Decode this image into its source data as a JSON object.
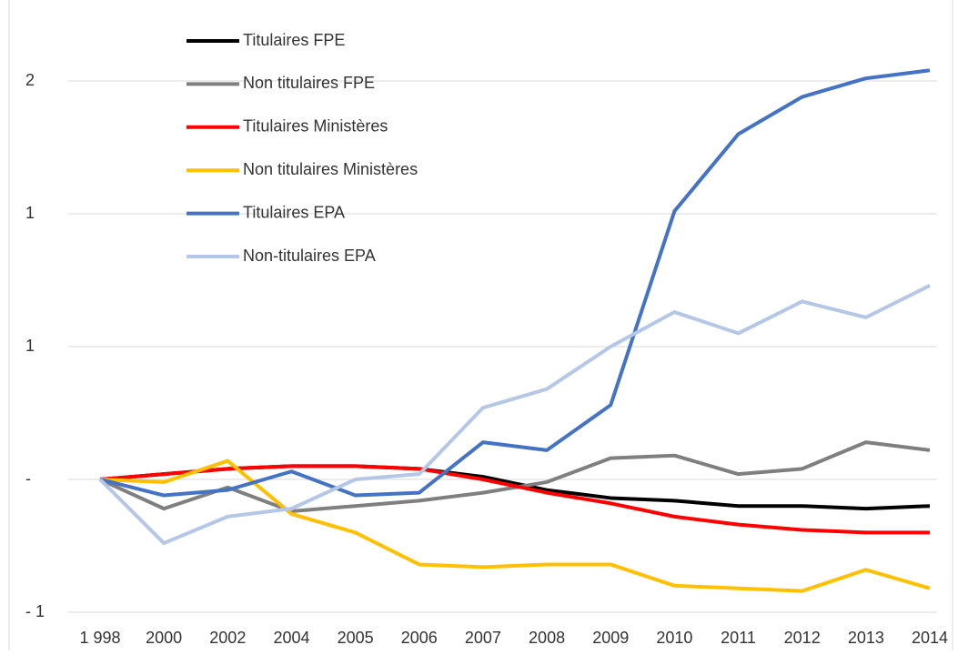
{
  "chart_data": {
    "type": "line",
    "categories": [
      "1 998",
      "2000",
      "2002",
      "2004",
      "2005",
      "2006",
      "2007",
      "2008",
      "2009",
      "2010",
      "2011",
      "2012",
      "2013",
      "2014"
    ],
    "series": [
      {
        "name": "Titulaires FPE",
        "color": "#000000",
        "values": [
          0,
          0.02,
          0.04,
          0.05,
          0.05,
          0.04,
          0.01,
          -0.04,
          -0.07,
          -0.08,
          -0.1,
          -0.1,
          -0.11,
          -0.1
        ]
      },
      {
        "name": "Non titulaires FPE",
        "color": "#7f7f7f",
        "values": [
          0,
          -0.11,
          -0.03,
          -0.12,
          -0.1,
          -0.08,
          -0.05,
          -0.01,
          0.08,
          0.09,
          0.02,
          0.04,
          0.14,
          0.11
        ]
      },
      {
        "name": "Titulaires Ministères",
        "color": "#ff0000",
        "values": [
          0,
          0.02,
          0.04,
          0.05,
          0.05,
          0.04,
          0,
          -0.05,
          -0.09,
          -0.14,
          -0.17,
          -0.19,
          -0.2,
          -0.2
        ]
      },
      {
        "name": "Non titulaires Ministères",
        "color": "#ffc000",
        "values": [
          0,
          -0.01,
          0.07,
          -0.13,
          -0.2,
          -0.32,
          -0.33,
          -0.32,
          -0.32,
          -0.4,
          -0.41,
          -0.42,
          -0.34,
          -0.41
        ]
      },
      {
        "name": "Titulaires EPA",
        "color": "#4472c4",
        "values": [
          0,
          -0.06,
          -0.04,
          0.03,
          -0.06,
          -0.05,
          0.14,
          0.11,
          0.28,
          1.01,
          1.3,
          1.44,
          1.51,
          1.54
        ]
      },
      {
        "name": "Non-titulaires EPA",
        "color": "#b4c7e7",
        "values": [
          0,
          -0.24,
          -0.14,
          -0.11,
          0,
          0.02,
          0.27,
          0.34,
          0.5,
          0.63,
          0.55,
          0.67,
          0.61,
          0.73
        ]
      }
    ],
    "ylim": [
      -0.5,
      1.75
    ],
    "yticks": [
      {
        "value": -0.5,
        "label": "- 1"
      },
      {
        "value": 0,
        "label": "-"
      },
      {
        "value": 0.5,
        "label": "1"
      },
      1,
      {
        "value": 1.5,
        "label": "2"
      }
    ],
    "grid": true,
    "legend": "upper left"
  }
}
